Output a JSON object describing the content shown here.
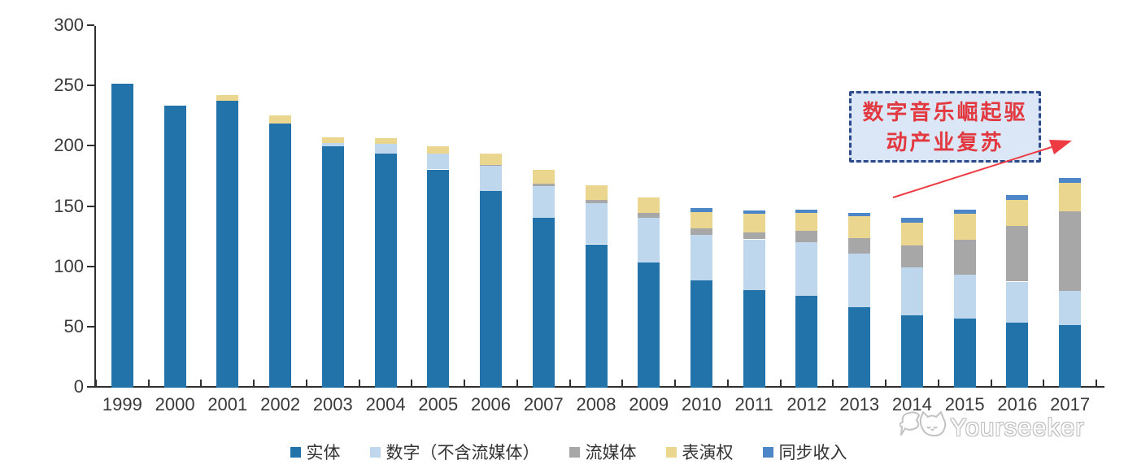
{
  "chart_data": {
    "type": "bar",
    "stacked": true,
    "title": "",
    "xlabel": "",
    "ylabel": "",
    "categories": [
      "1999",
      "2000",
      "2001",
      "2002",
      "2003",
      "2004",
      "2005",
      "2006",
      "2007",
      "2008",
      "2009",
      "2010",
      "2011",
      "2012",
      "2013",
      "2014",
      "2015",
      "2016",
      "2017"
    ],
    "series": [
      {
        "name": "实体",
        "color": "#2173A9",
        "values": [
          252,
          234,
          238,
          219,
          200,
          194,
          181,
          163,
          141,
          119,
          104,
          89,
          81,
          76,
          67,
          60,
          57,
          54,
          52
        ]
      },
      {
        "name": "数字（不含流媒体）",
        "color": "#BFD7ED",
        "values": [
          0,
          0,
          0,
          0,
          3,
          8,
          13,
          21,
          26,
          34,
          37,
          38,
          42,
          45,
          44,
          40,
          37,
          34,
          28
        ]
      },
      {
        "name": "流媒体",
        "color": "#A7A7A7",
        "values": [
          0,
          0,
          0,
          0,
          0,
          0,
          0,
          1,
          2,
          3,
          4,
          5,
          6,
          9,
          13,
          18,
          29,
          46,
          66
        ]
      },
      {
        "name": "表演权",
        "color": "#EBD68F",
        "values": [
          0,
          0,
          5,
          7,
          5,
          5,
          6,
          9,
          12,
          12,
          13,
          14,
          15,
          15,
          18,
          19,
          21,
          22,
          24
        ]
      },
      {
        "name": "同步收入",
        "color": "#4C86C6",
        "values": [
          0,
          0,
          0,
          0,
          0,
          0,
          0,
          0,
          0,
          0,
          0,
          3,
          3,
          3,
          3,
          4,
          4,
          4,
          4
        ]
      }
    ],
    "ylim": [
      0,
      300
    ],
    "yticks": [
      0,
      50,
      100,
      150,
      200,
      250,
      300
    ],
    "grid": false,
    "legend_position": "bottom"
  },
  "annotation": {
    "line1": "数字音乐崛起驱",
    "line2": "动产业复苏",
    "box_bg": "#DBE7F6",
    "box_border": "#2B4A8C",
    "text_color": "#E2383F",
    "arrow_color": "#EE3B43"
  },
  "watermark": {
    "text": "Yourseeker",
    "logo": "cat-speech-bubble-icon"
  },
  "colors": {
    "axis": "#2f2f2f",
    "tick_label": "#3a3a3a"
  }
}
